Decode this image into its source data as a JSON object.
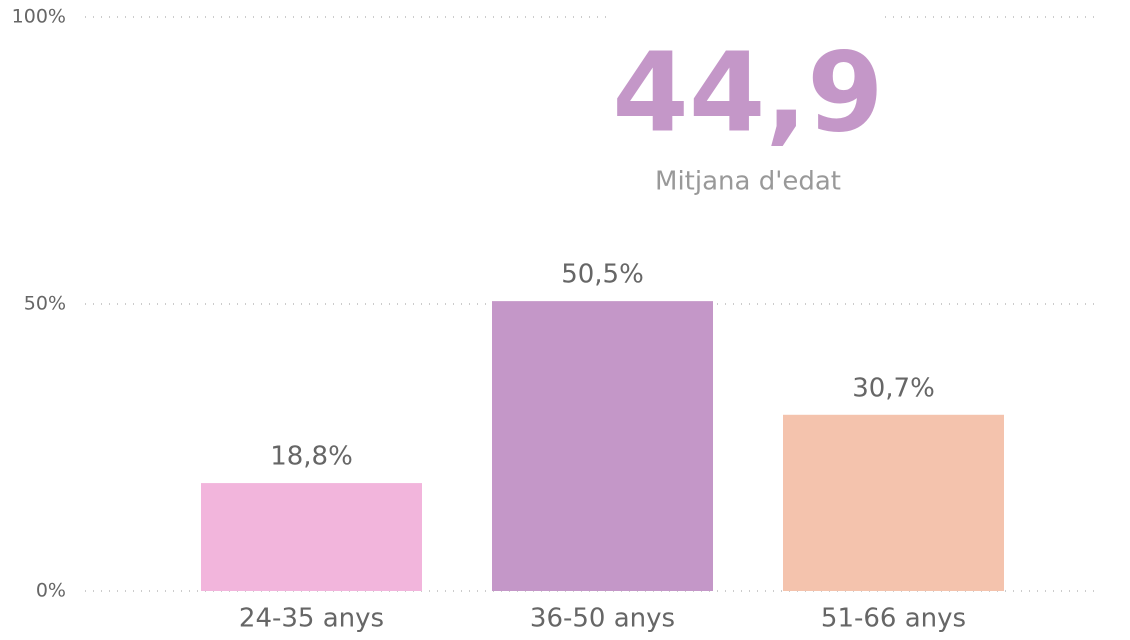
{
  "chart_data": {
    "type": "bar",
    "categories": [
      "24-35 anys",
      "36-50 anys",
      "51-66 anys"
    ],
    "values": [
      18.8,
      50.5,
      30.7
    ],
    "value_labels": [
      "18,8%",
      "50,5%",
      "30,7%"
    ],
    "colors": [
      "#f2b5dc",
      "#c497c8",
      "#f4c3ad"
    ],
    "ylim": [
      0,
      100
    ],
    "yticks": [
      {
        "value": 0,
        "label": "0%"
      },
      {
        "value": 50,
        "label": "50%"
      },
      {
        "value": 100,
        "label": "100%"
      }
    ],
    "grid": true,
    "kpi": {
      "value": 44.9,
      "label": "44,9",
      "caption": "Mitjana d'edat",
      "color": "#c497c8"
    }
  }
}
